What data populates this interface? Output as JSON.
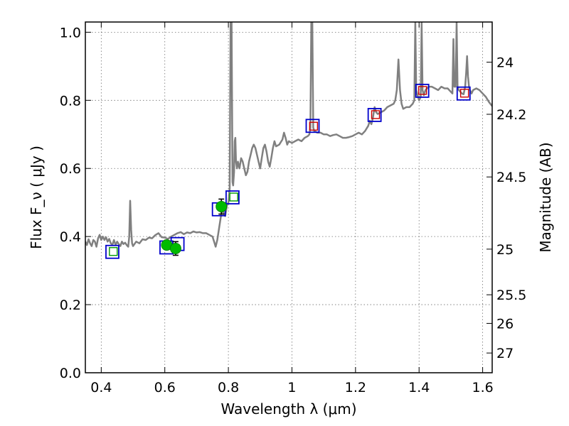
{
  "chart_data": {
    "type": "scatter",
    "xlabel": "Wavelength  λ (μm)",
    "ylabel": "Flux  F_ν  ( μJy )",
    "ylabel_right": "Magnitude (AB)",
    "xlim": [
      0.35,
      1.63
    ],
    "ylim": [
      0.0,
      1.03
    ],
    "grid": true,
    "x_ticks": [
      0.4,
      0.6,
      0.8,
      1.0,
      1.2,
      1.4,
      1.6
    ],
    "x_tick_labels": [
      "0.4",
      "0.6",
      "0.8",
      "1",
      "1.2",
      "1.4",
      "1.6"
    ],
    "y_ticks": [
      0.0,
      0.2,
      0.4,
      0.6,
      0.8,
      1.0
    ],
    "y_tick_labels": [
      "0.0",
      "0.2",
      "0.4",
      "0.6",
      "0.8",
      "1.0"
    ],
    "right_ticks": [
      {
        "label": "24",
        "flux": 0.912
      },
      {
        "label": "24.2",
        "flux": 0.759
      },
      {
        "label": "24.5",
        "flux": 0.575
      },
      {
        "label": "25",
        "flux": 0.363
      },
      {
        "label": "25.5",
        "flux": 0.229
      },
      {
        "label": "26",
        "flux": 0.145
      },
      {
        "label": "27",
        "flux": 0.058
      }
    ],
    "colors": {
      "spectrum": "#808080",
      "model_box": "#0000cc",
      "green_obs": "#009900",
      "red_obs": "#cc0000"
    },
    "series": [
      {
        "kind": "spectrum",
        "points": [
          [
            0.35,
            0.385
          ],
          [
            0.355,
            0.375
          ],
          [
            0.36,
            0.392
          ],
          [
            0.365,
            0.38
          ],
          [
            0.37,
            0.372
          ],
          [
            0.375,
            0.39
          ],
          [
            0.38,
            0.385
          ],
          [
            0.385,
            0.37
          ],
          [
            0.39,
            0.395
          ],
          [
            0.395,
            0.405
          ],
          [
            0.4,
            0.39
          ],
          [
            0.405,
            0.4
          ],
          [
            0.41,
            0.39
          ],
          [
            0.415,
            0.398
          ],
          [
            0.42,
            0.385
          ],
          [
            0.425,
            0.393
          ],
          [
            0.43,
            0.38
          ],
          [
            0.435,
            0.375
          ],
          [
            0.44,
            0.39
          ],
          [
            0.445,
            0.375
          ],
          [
            0.45,
            0.385
          ],
          [
            0.455,
            0.378
          ],
          [
            0.46,
            0.372
          ],
          [
            0.465,
            0.385
          ],
          [
            0.47,
            0.378
          ],
          [
            0.475,
            0.382
          ],
          [
            0.48,
            0.375
          ],
          [
            0.485,
            0.37
          ],
          [
            0.488,
            0.4
          ],
          [
            0.491,
            0.505
          ],
          [
            0.494,
            0.42
          ],
          [
            0.497,
            0.38
          ],
          [
            0.5,
            0.372
          ],
          [
            0.51,
            0.385
          ],
          [
            0.52,
            0.38
          ],
          [
            0.53,
            0.392
          ],
          [
            0.54,
            0.39
          ],
          [
            0.55,
            0.397
          ],
          [
            0.56,
            0.395
          ],
          [
            0.57,
            0.404
          ],
          [
            0.58,
            0.41
          ],
          [
            0.59,
            0.398
          ],
          [
            0.6,
            0.397
          ],
          [
            0.61,
            0.393
          ],
          [
            0.62,
            0.4
          ],
          [
            0.63,
            0.405
          ],
          [
            0.64,
            0.41
          ],
          [
            0.65,
            0.413
          ],
          [
            0.66,
            0.407
          ],
          [
            0.67,
            0.412
          ],
          [
            0.68,
            0.41
          ],
          [
            0.69,
            0.415
          ],
          [
            0.7,
            0.412
          ],
          [
            0.71,
            0.413
          ],
          [
            0.72,
            0.41
          ],
          [
            0.73,
            0.41
          ],
          [
            0.74,
            0.405
          ],
          [
            0.75,
            0.4
          ],
          [
            0.755,
            0.385
          ],
          [
            0.76,
            0.37
          ],
          [
            0.765,
            0.39
          ],
          [
            0.77,
            0.42
          ],
          [
            0.775,
            0.45
          ],
          [
            0.78,
            0.48
          ],
          [
            0.785,
            0.47
          ],
          [
            0.79,
            0.46
          ],
          [
            0.795,
            0.49
          ],
          [
            0.8,
            0.5
          ],
          [
            0.804,
            0.54
          ],
          [
            0.807,
            1.05
          ],
          [
            0.81,
            1.05
          ],
          [
            0.813,
            0.56
          ],
          [
            0.815,
            0.55
          ],
          [
            0.818,
            0.59
          ],
          [
            0.82,
            0.68
          ],
          [
            0.822,
            0.69
          ],
          [
            0.824,
            0.62
          ],
          [
            0.827,
            0.6
          ],
          [
            0.83,
            0.62
          ],
          [
            0.835,
            0.6
          ],
          [
            0.84,
            0.63
          ],
          [
            0.845,
            0.62
          ],
          [
            0.85,
            0.6
          ],
          [
            0.855,
            0.58
          ],
          [
            0.86,
            0.59
          ],
          [
            0.865,
            0.62
          ],
          [
            0.87,
            0.64
          ],
          [
            0.875,
            0.66
          ],
          [
            0.88,
            0.67
          ],
          [
            0.885,
            0.66
          ],
          [
            0.89,
            0.64
          ],
          [
            0.895,
            0.62
          ],
          [
            0.9,
            0.6
          ],
          [
            0.905,
            0.63
          ],
          [
            0.91,
            0.66
          ],
          [
            0.915,
            0.67
          ],
          [
            0.92,
            0.65
          ],
          [
            0.925,
            0.62
          ],
          [
            0.93,
            0.605
          ],
          [
            0.935,
            0.63
          ],
          [
            0.94,
            0.66
          ],
          [
            0.945,
            0.68
          ],
          [
            0.95,
            0.665
          ],
          [
            0.96,
            0.67
          ],
          [
            0.97,
            0.685
          ],
          [
            0.975,
            0.705
          ],
          [
            0.98,
            0.69
          ],
          [
            0.985,
            0.67
          ],
          [
            0.99,
            0.68
          ],
          [
            1.0,
            0.675
          ],
          [
            1.01,
            0.68
          ],
          [
            1.02,
            0.685
          ],
          [
            1.03,
            0.68
          ],
          [
            1.04,
            0.69
          ],
          [
            1.05,
            0.695
          ],
          [
            1.055,
            0.7
          ],
          [
            1.058,
            0.72
          ],
          [
            1.061,
            1.05
          ],
          [
            1.064,
            1.05
          ],
          [
            1.067,
            0.72
          ],
          [
            1.07,
            0.71
          ],
          [
            1.08,
            0.705
          ],
          [
            1.09,
            0.705
          ],
          [
            1.1,
            0.7
          ],
          [
            1.11,
            0.7
          ],
          [
            1.12,
            0.695
          ],
          [
            1.13,
            0.698
          ],
          [
            1.14,
            0.7
          ],
          [
            1.15,
            0.695
          ],
          [
            1.16,
            0.69
          ],
          [
            1.17,
            0.69
          ],
          [
            1.18,
            0.692
          ],
          [
            1.19,
            0.695
          ],
          [
            1.2,
            0.7
          ],
          [
            1.21,
            0.705
          ],
          [
            1.22,
            0.7
          ],
          [
            1.23,
            0.71
          ],
          [
            1.24,
            0.725
          ],
          [
            1.245,
            0.74
          ],
          [
            1.25,
            0.73
          ],
          [
            1.255,
            0.75
          ],
          [
            1.26,
            0.78
          ],
          [
            1.265,
            0.765
          ],
          [
            1.27,
            0.76
          ],
          [
            1.28,
            0.765
          ],
          [
            1.29,
            0.77
          ],
          [
            1.3,
            0.78
          ],
          [
            1.31,
            0.785
          ],
          [
            1.32,
            0.79
          ],
          [
            1.325,
            0.8
          ],
          [
            1.33,
            0.83
          ],
          [
            1.335,
            0.92
          ],
          [
            1.34,
            0.83
          ],
          [
            1.345,
            0.79
          ],
          [
            1.35,
            0.775
          ],
          [
            1.36,
            0.78
          ],
          [
            1.37,
            0.78
          ],
          [
            1.38,
            0.79
          ],
          [
            1.385,
            0.8
          ],
          [
            1.388,
            1.05
          ],
          [
            1.391,
            0.83
          ],
          [
            1.395,
            0.815
          ],
          [
            1.4,
            0.8
          ],
          [
            1.405,
            0.81
          ],
          [
            1.408,
            1.05
          ],
          [
            1.411,
            0.83
          ],
          [
            1.415,
            0.815
          ],
          [
            1.42,
            0.83
          ],
          [
            1.43,
            0.84
          ],
          [
            1.44,
            0.84
          ],
          [
            1.45,
            0.835
          ],
          [
            1.46,
            0.83
          ],
          [
            1.47,
            0.84
          ],
          [
            1.48,
            0.835
          ],
          [
            1.49,
            0.835
          ],
          [
            1.5,
            0.825
          ],
          [
            1.505,
            0.82
          ],
          [
            1.508,
            0.98
          ],
          [
            1.511,
            0.84
          ],
          [
            1.515,
            0.84
          ],
          [
            1.518,
            1.05
          ],
          [
            1.521,
            0.84
          ],
          [
            1.525,
            0.83
          ],
          [
            1.53,
            0.825
          ],
          [
            1.535,
            0.82
          ],
          [
            1.54,
            0.818
          ],
          [
            1.545,
            0.84
          ],
          [
            1.548,
            0.88
          ],
          [
            1.551,
            0.93
          ],
          [
            1.554,
            0.87
          ],
          [
            1.557,
            0.84
          ],
          [
            1.56,
            0.83
          ],
          [
            1.565,
            0.82
          ],
          [
            1.57,
            0.83
          ],
          [
            1.58,
            0.835
          ],
          [
            1.59,
            0.83
          ],
          [
            1.6,
            0.82
          ],
          [
            1.61,
            0.81
          ],
          [
            1.62,
            0.795
          ],
          [
            1.63,
            0.783
          ]
        ]
      },
      {
        "kind": "model_boxes",
        "points": [
          [
            0.435,
            0.355
          ],
          [
            0.605,
            0.368
          ],
          [
            0.64,
            0.378
          ],
          [
            0.77,
            0.48
          ],
          [
            0.813,
            0.515
          ],
          [
            1.065,
            0.725
          ],
          [
            1.26,
            0.757
          ],
          [
            1.41,
            0.828
          ],
          [
            1.54,
            0.82
          ]
        ]
      },
      {
        "kind": "observed_green",
        "style": "open_square",
        "points": [
          [
            0.438,
            0.355
          ],
          [
            0.817,
            0.515
          ]
        ]
      },
      {
        "kind": "observed_red",
        "style": "open_square",
        "points": [
          [
            1.068,
            0.723
          ],
          [
            1.263,
            0.757
          ],
          [
            1.411,
            0.828
          ],
          [
            1.543,
            0.82
          ]
        ]
      },
      {
        "kind": "observed_green_points",
        "style": "filled_circle_errorbar",
        "points": [
          {
            "x": 0.606,
            "y": 0.375,
            "err": 0.012
          },
          {
            "x": 0.634,
            "y": 0.365,
            "err": 0.02
          },
          {
            "x": 0.778,
            "y": 0.488,
            "err": 0.022
          }
        ]
      }
    ]
  }
}
